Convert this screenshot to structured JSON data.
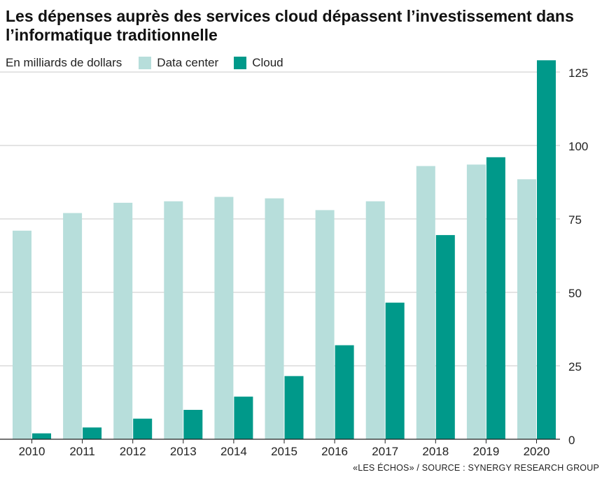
{
  "title": "Les dépenses auprès des services cloud dépassent l’investissement dans l’informatique traditionnelle",
  "unit_label": "En milliards de dollars",
  "source": "«LES ÉCHOS» / SOURCE : SYNERGY RESEARCH GROUP",
  "colors": {
    "data_center": "#b7dedb",
    "cloud": "#00998a",
    "grid": "#c8c8c8",
    "axis": "#222222"
  },
  "chart_data": {
    "type": "bar",
    "title": "Les dépenses auprès des services cloud dépassent l’investissement dans l’informatique traditionnelle",
    "ylabel": "En milliards de dollars",
    "categories": [
      "2010",
      "2011",
      "2012",
      "2013",
      "2014",
      "2015",
      "2016",
      "2017",
      "2018",
      "2019",
      "2020"
    ],
    "series": [
      {
        "name": "Data center",
        "values": [
          71,
          77,
          80.5,
          81,
          82.5,
          82,
          78,
          81,
          93,
          93.5,
          88.5
        ]
      },
      {
        "name": "Cloud",
        "values": [
          2,
          4,
          7,
          10,
          14.5,
          21.5,
          32,
          46.5,
          69.5,
          96,
          129
        ]
      }
    ],
    "ylim": [
      0,
      130
    ],
    "yticks": [
      0,
      25,
      50,
      75,
      100,
      125
    ],
    "grid": true,
    "y_axis_position": "right",
    "legend_position": "top-left"
  }
}
